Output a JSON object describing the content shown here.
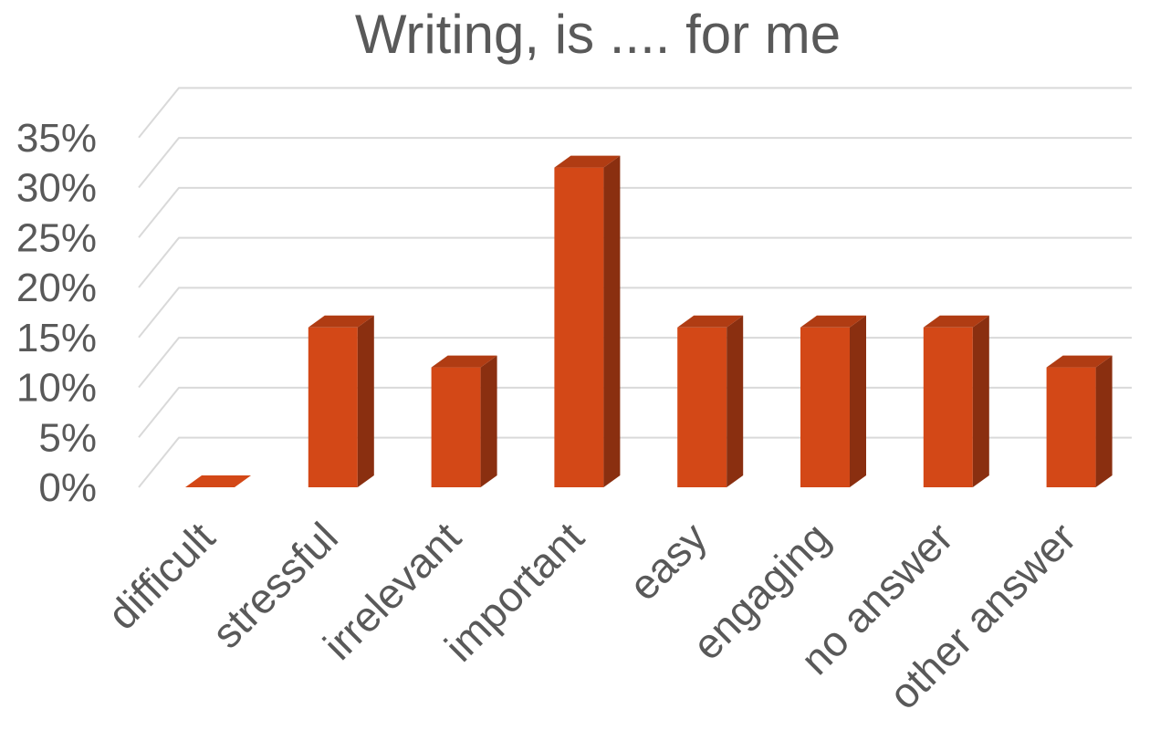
{
  "chart_data": {
    "type": "bar",
    "title": "Writing, is .... for me",
    "xlabel": "",
    "ylabel": "",
    "categories": [
      "difficult",
      "stressful",
      "irrelevant",
      "important",
      "easy",
      "engaging",
      "no answer",
      "other answer"
    ],
    "values": [
      0,
      16,
      12,
      32,
      16,
      16,
      16,
      12
    ],
    "ylim": [
      0,
      35
    ],
    "ytick_step": 5,
    "ytick_suffix": "%",
    "grid": true,
    "legend": "none",
    "colors": {
      "front": "#d34817",
      "top": "#b03c13",
      "side": "#8a2f10",
      "grid": "#d9d9d9"
    }
  }
}
